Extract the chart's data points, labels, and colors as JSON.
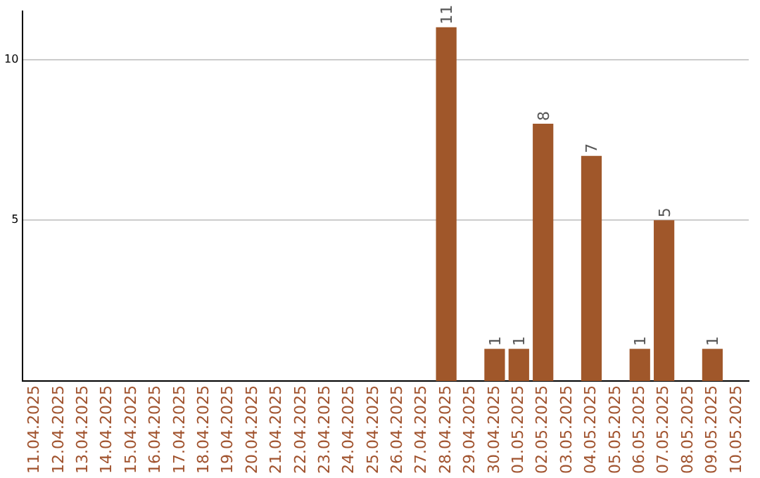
{
  "chart_data": {
    "type": "bar",
    "categories": [
      "11.04.2025",
      "12.04.2025",
      "13.04.2025",
      "14.04.2025",
      "15.04.2025",
      "16.04.2025",
      "17.04.2025",
      "18.04.2025",
      "19.04.2025",
      "20.04.2025",
      "21.04.2025",
      "22.04.2025",
      "23.04.2025",
      "24.04.2025",
      "25.04.2025",
      "26.04.2025",
      "27.04.2025",
      "28.04.2025",
      "29.04.2025",
      "30.04.2025",
      "01.05.2025",
      "02.05.2025",
      "03.05.2025",
      "04.05.2025",
      "05.05.2025",
      "06.05.2025",
      "07.05.2025",
      "08.05.2025",
      "09.05.2025",
      "10.05.2025"
    ],
    "values": [
      null,
      null,
      null,
      null,
      null,
      null,
      null,
      null,
      null,
      null,
      null,
      null,
      null,
      null,
      null,
      null,
      null,
      11,
      null,
      1,
      1,
      8,
      null,
      7,
      null,
      1,
      5,
      null,
      1,
      null
    ],
    "color": "#a0572a",
    "ylim": [
      0,
      11.5
    ],
    "yticks": [
      5,
      10
    ],
    "grid": "y",
    "data_labels": true,
    "legend": false
  }
}
